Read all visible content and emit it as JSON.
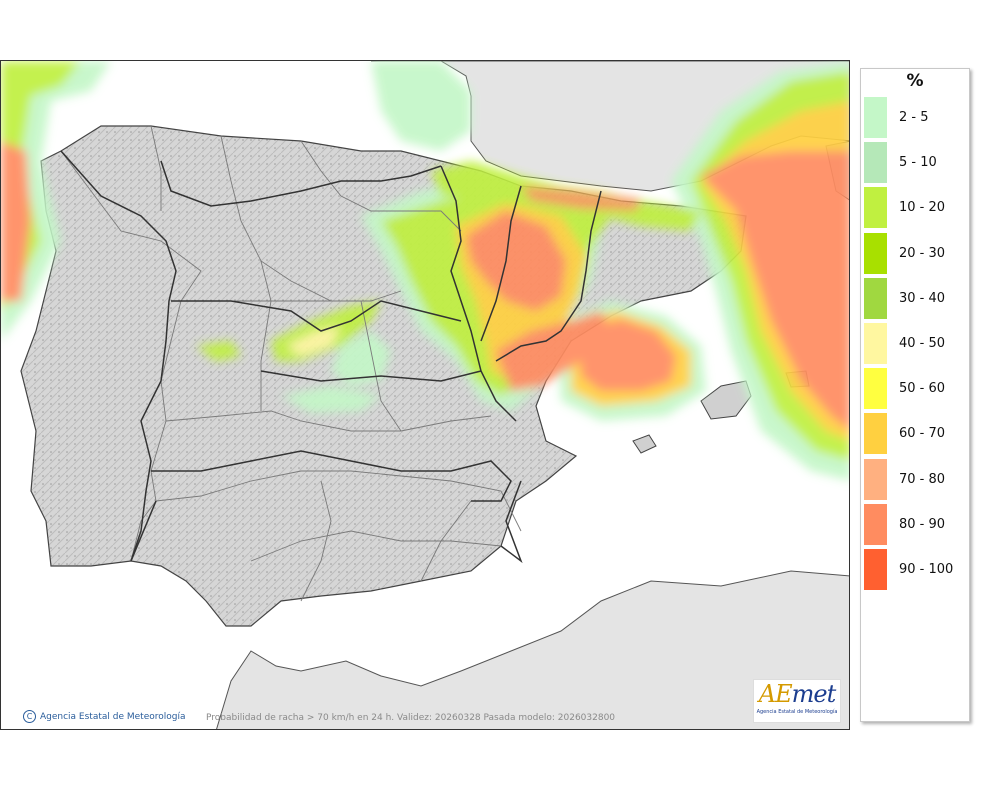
{
  "map": {
    "caption": "Probabilidad de racha > 70 km/h en 24 h. Validez: 20260328 Pasada modelo: 2026032800",
    "credit": "Agencia Estatal de Meteorología",
    "copyright_symbol": "C",
    "logo": {
      "word_a": "AE",
      "word_b": "met",
      "subtitle": "Agencia Estatal de Meteorología"
    }
  },
  "legend": {
    "unit": "%",
    "items": [
      {
        "label": "2 - 5",
        "color": "#c4f7c8"
      },
      {
        "label": "5 - 10",
        "color": "#b5e8b8"
      },
      {
        "label": "10 - 20",
        "color": "#c0f040"
      },
      {
        "label": "20 - 30",
        "color": "#a8e000"
      },
      {
        "label": "30 - 40",
        "color": "#a0d840"
      },
      {
        "label": "40 - 50",
        "color": "#fff7a0"
      },
      {
        "label": "50 - 60",
        "color": "#ffff40"
      },
      {
        "label": "60 - 70",
        "color": "#ffd040"
      },
      {
        "label": "70 - 80",
        "color": "#ffb080"
      },
      {
        "label": "80 - 90",
        "color": "#ff8c60"
      },
      {
        "label": "90 - 100",
        "color": "#ff6030"
      }
    ]
  }
}
